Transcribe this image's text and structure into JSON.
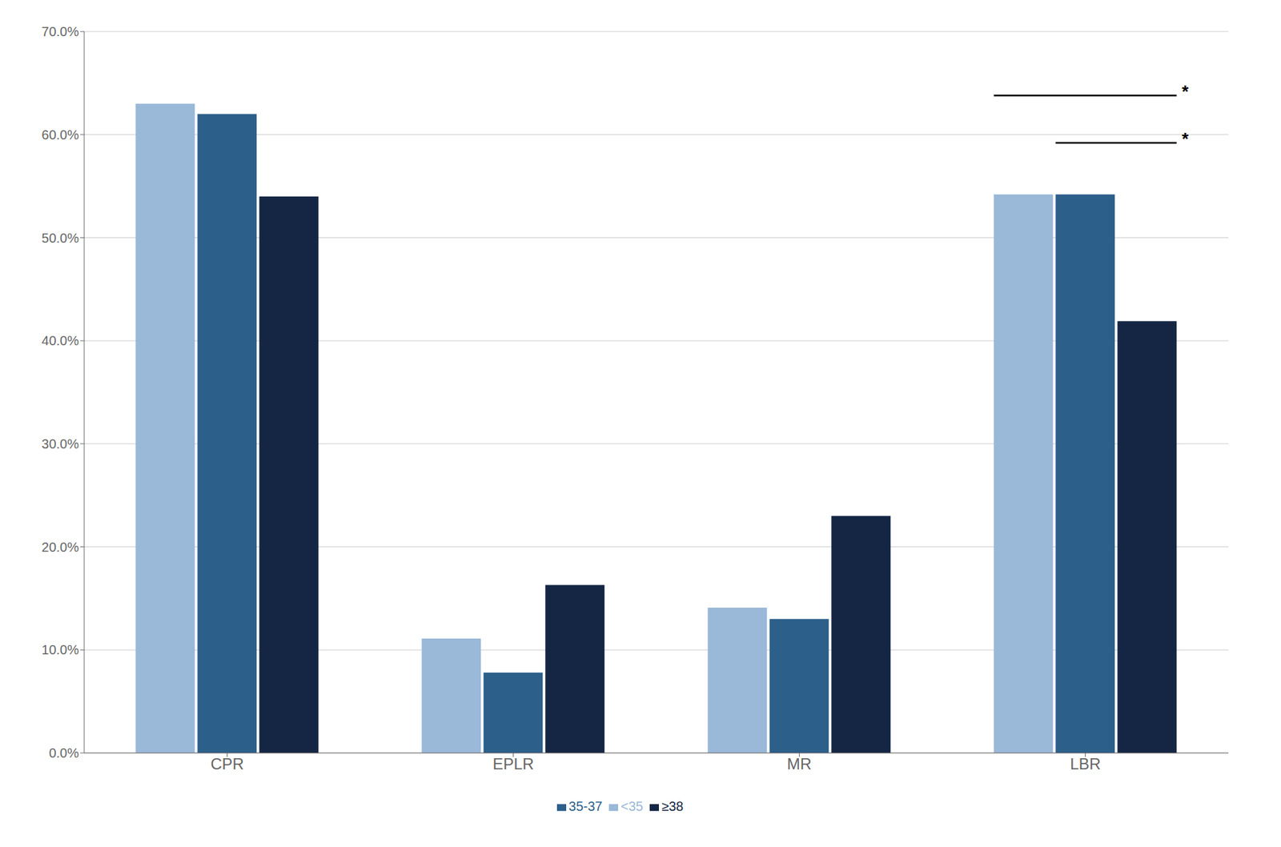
{
  "chart_data": {
    "type": "bar",
    "categories": [
      "CPR",
      "EPLR",
      "MR",
      "LBR"
    ],
    "series": [
      {
        "name": "<35",
        "color": "#9ab8d8",
        "values": [
          0.63,
          0.111,
          0.141,
          0.542
        ]
      },
      {
        "name": "35-37",
        "color": "#2c5f8a",
        "values": [
          0.62,
          0.078,
          0.13,
          0.542
        ]
      },
      {
        "name": "≥38",
        "color": "#152644",
        "values": [
          0.54,
          0.163,
          0.23,
          0.419
        ]
      }
    ],
    "ylim": [
      0.0,
      0.7
    ],
    "yticks": [
      {
        "value": 0.0,
        "label": "0.0%"
      },
      {
        "value": 0.1,
        "label": "10.0%"
      },
      {
        "value": 0.2,
        "label": "20.0%"
      },
      {
        "value": 0.3,
        "label": "30.0%"
      },
      {
        "value": 0.4,
        "label": "40.0%"
      },
      {
        "value": 0.5,
        "label": "50.0%"
      },
      {
        "value": 0.6,
        "label": "60.0%"
      },
      {
        "value": 0.7,
        "label": "70.0%"
      }
    ],
    "grid": true,
    "legend": "bottom",
    "annotations": [
      {
        "text": "*",
        "category": "LBR",
        "from": "<35",
        "to": "≥38",
        "y": 0.638
      },
      {
        "text": "*",
        "category": "LBR",
        "from": "35-37",
        "to": "≥38",
        "y": 0.592
      }
    ]
  }
}
